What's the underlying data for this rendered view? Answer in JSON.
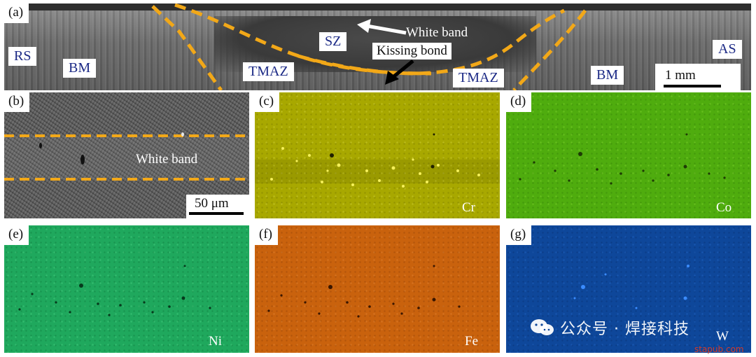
{
  "panels": {
    "a": {
      "tag": "(a)",
      "labels": {
        "rs": "RS",
        "bm_left": "BM",
        "tmaz_left": "TMAZ",
        "sz": "SZ",
        "white_band": "White band",
        "kissing_bond": "Kissing bond",
        "tmaz_right": "TMAZ",
        "bm_right": "BM",
        "as": "AS"
      },
      "scale": "1 mm"
    },
    "b": {
      "tag": "(b)",
      "white_band": "White band",
      "scale": "50 μm"
    },
    "c": {
      "tag": "(c)",
      "element": "Cr",
      "color": "#a8a800"
    },
    "d": {
      "tag": "(d)",
      "element": "Co",
      "color": "#4fac0e"
    },
    "e": {
      "tag": "(e)",
      "element": "Ni",
      "color": "#1fa85d"
    },
    "f": {
      "tag": "(f)",
      "element": "Fe",
      "color": "#c9620d"
    },
    "g": {
      "tag": "(g)",
      "element": "W",
      "color": "#0e479a"
    }
  },
  "boundary_color": "#f2a818",
  "watermark": {
    "text": "公众号 · 焊接科技",
    "site": "stapub.com",
    "icon": "wechat-icon"
  }
}
